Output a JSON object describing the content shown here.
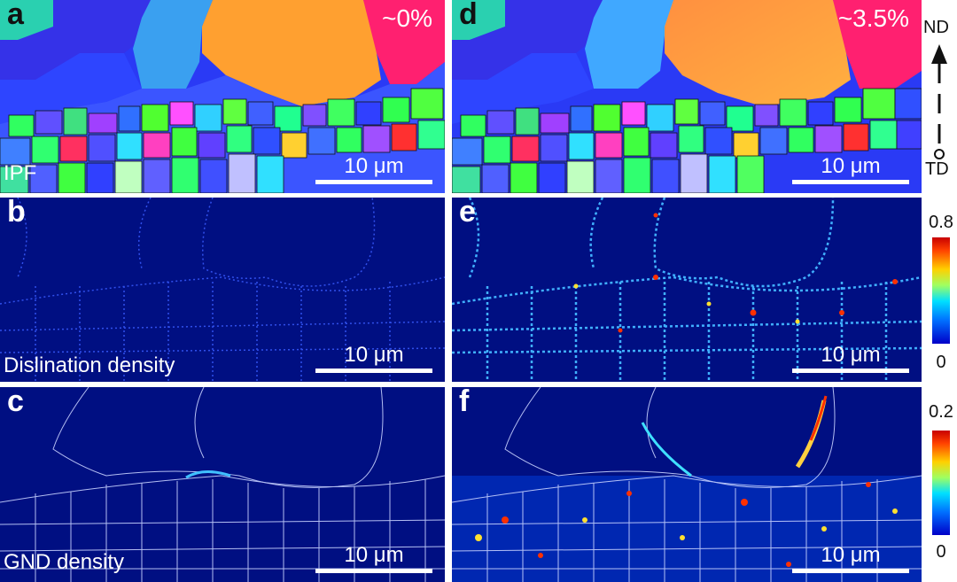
{
  "panels": {
    "a": {
      "letter": "a",
      "strain": "~0%",
      "row_label": "IPF",
      "scale": "10 μm"
    },
    "b": {
      "letter": "b",
      "row_label": "Dislination density",
      "scale": "10 μm"
    },
    "c": {
      "letter": "c",
      "row_label": "GND density",
      "scale": "10 μm"
    },
    "d": {
      "letter": "d",
      "strain": "~3.5%",
      "scale": "10 μm"
    },
    "e": {
      "letter": "e",
      "scale": "10 μm"
    },
    "f": {
      "letter": "f",
      "scale": "10 μm"
    }
  },
  "orientation": {
    "top": "ND",
    "bottom": "TD"
  },
  "colorbars": {
    "disclination": {
      "max": "0.8",
      "min": "0"
    },
    "gnd": {
      "max": "0.2",
      "min": "0"
    }
  },
  "colors": {
    "map_background": "#000f82",
    "boundary": "#c8d2ff",
    "orange_grain": "#ffa030",
    "pink_grain": "#ff2070",
    "blue_grain": "#2035ff",
    "hot": "#ff3000"
  }
}
